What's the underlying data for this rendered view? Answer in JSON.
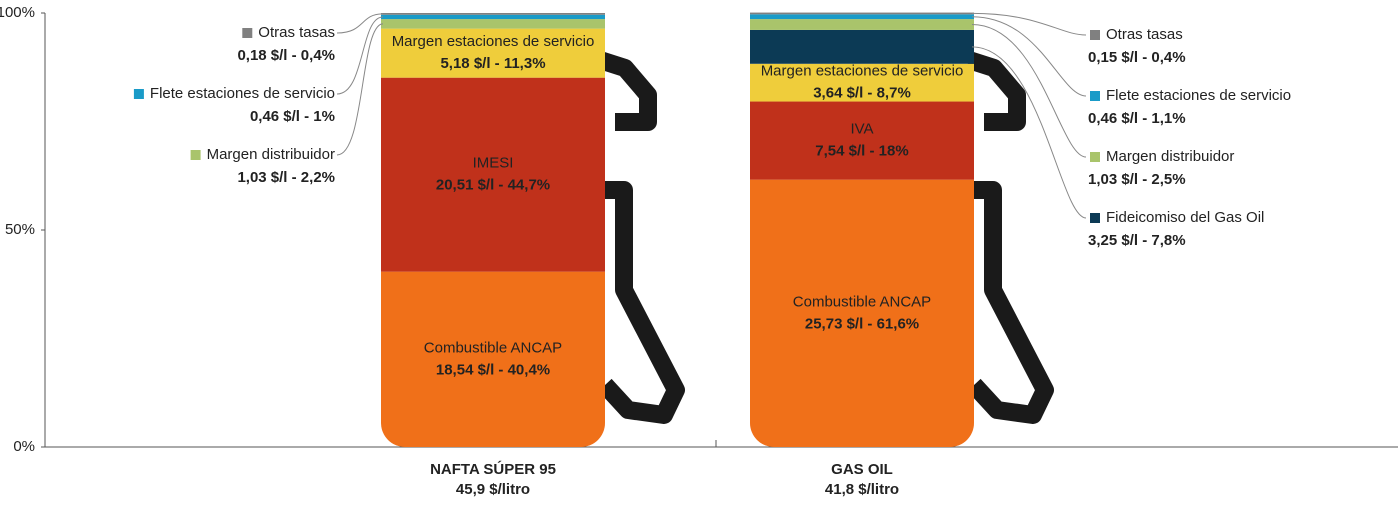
{
  "chart_data": {
    "type": "bar",
    "stacked": true,
    "categories": [
      "NAFTA SÚPER 95",
      "GAS OIL"
    ],
    "totals": [
      "45,9 $/litro",
      "41,8 $/litro"
    ],
    "ylim": [
      0,
      100
    ],
    "yticks": [
      {
        "value": 0,
        "label": "0%"
      },
      {
        "value": 50,
        "label": "50%"
      },
      {
        "value": 100,
        "label": "100%"
      }
    ],
    "series": [
      {
        "name": "Combustible ANCAP",
        "color": "#f07019",
        "values": [
          40.4,
          61.6
        ],
        "value_labels": [
          "18,54 $/l - 40,4%",
          "25,73 $/l - 61,6%"
        ]
      },
      {
        "name": "IMESI",
        "color": "#c0311b",
        "values": [
          44.7,
          null
        ],
        "value_labels": [
          "20,51 $/l - 44,7%",
          null
        ]
      },
      {
        "name": "IVA",
        "color": "#c0311b",
        "values": [
          null,
          18
        ],
        "value_labels": [
          null,
          "7,54 $/l - 18%"
        ]
      },
      {
        "name": "Margen estaciones de servicio",
        "color": "#efcd3b",
        "values": [
          11.3,
          8.7
        ],
        "value_labels": [
          "5,18 $/l - 11,3%",
          "3,64 $/l - 8,7%"
        ]
      },
      {
        "name": "Fideicomiso del Gas Oil",
        "color": "#0c3a55",
        "values": [
          null,
          7.8
        ],
        "value_labels": [
          null,
          "3,25 $/l - 7,8%"
        ]
      },
      {
        "name": "Margen distribuidor",
        "color": "#a9c46b",
        "values": [
          2.2,
          2.5
        ],
        "value_labels": [
          "1,03 $/l - 2,2%",
          "1,03 $/l - 2,5%"
        ]
      },
      {
        "name": "Flete estaciones de servicio",
        "color": "#1a9bc8",
        "values": [
          1,
          1.1
        ],
        "value_labels": [
          "0,46 $/l - 1%",
          "0,46 $/l - 1,1%"
        ]
      },
      {
        "name": "Otras tasas",
        "color": "#808080",
        "values": [
          0.4,
          0.4
        ],
        "value_labels": [
          "0,18 $/l - 0,4%",
          "0,15 $/l - 0,4%"
        ]
      }
    ]
  }
}
